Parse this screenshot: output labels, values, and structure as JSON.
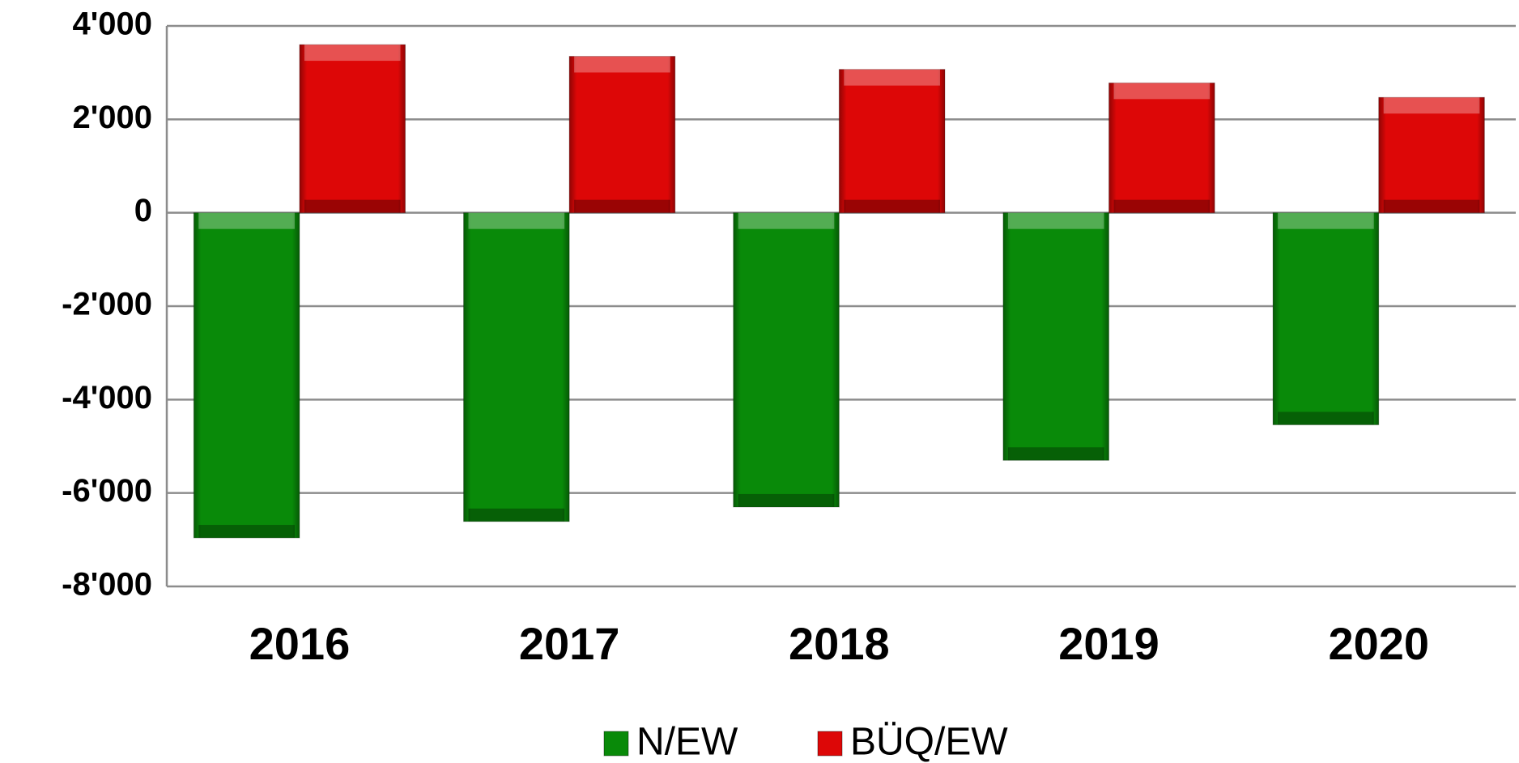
{
  "chart_data": {
    "type": "bar",
    "categories": [
      "2016",
      "2017",
      "2018",
      "2019",
      "2020"
    ],
    "series": [
      {
        "name": "N/EW",
        "color": "#098a09",
        "values": [
          -6960,
          -6610,
          -6300,
          -5300,
          -4540
        ]
      },
      {
        "name": "BÜQ/EW",
        "color": "#dd0707",
        "values": [
          3600,
          3350,
          3070,
          2780,
          2470
        ]
      }
    ],
    "ylim": [
      -8000,
      4000
    ],
    "yticks": [
      {
        "value": -8000,
        "label": "-8'000"
      },
      {
        "value": -6000,
        "label": "-6'000"
      },
      {
        "value": -4000,
        "label": "-4'000"
      },
      {
        "value": -2000,
        "label": "-2'000"
      },
      0,
      {
        "value": 2000,
        "label": "2'000"
      },
      {
        "value": 4000,
        "label": "4'000"
      }
    ],
    "grid": true,
    "legend": "bottom"
  }
}
